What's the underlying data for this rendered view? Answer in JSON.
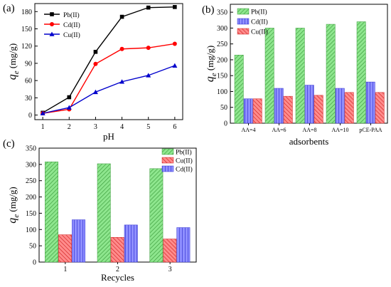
{
  "colors": {
    "pb_line": "#000000",
    "cd_line": "#ff0000",
    "cu_line": "#0000cc",
    "pb_bar": "#8ee68e",
    "pb_hatch": "#3a9a3a",
    "cd_bar": "#8f8fff",
    "cd_hatch": "#3030d0",
    "cu_bar": "#ff8c8c",
    "cu_hatch": "#d02020"
  },
  "chart_data": [
    {
      "id": "a",
      "panel_label": "(a)",
      "type": "line",
      "xlabel": "pH",
      "ylabel_main": "q",
      "ylabel_sub": "e",
      "ylabel_unit": " (mg/g)",
      "xlim": [
        0.7,
        6.3
      ],
      "ylim": [
        -8,
        194
      ],
      "xticks": [
        1,
        2,
        3,
        4,
        5,
        6
      ],
      "yticks": [
        0,
        30,
        60,
        90,
        120,
        150,
        180
      ],
      "grid": false,
      "legend_position": "top-left",
      "x": [
        1,
        2,
        3,
        4,
        5,
        6
      ],
      "series": [
        {
          "name": "Pb(II)",
          "marker": "square",
          "color_key": "pb_line",
          "values": [
            4,
            31,
            110,
            171,
            187,
            188
          ]
        },
        {
          "name": "Cd(II)",
          "marker": "circle",
          "color_key": "cd_line",
          "values": [
            3,
            10,
            89,
            115,
            117,
            124
          ]
        },
        {
          "name": "Cu(II)",
          "marker": "triangle",
          "color_key": "cu_line",
          "values": [
            3,
            13,
            40,
            58,
            69,
            86
          ]
        }
      ]
    },
    {
      "id": "b",
      "panel_label": "(b)",
      "type": "bar",
      "xlabel": "adsorbents",
      "ylabel_main": "q",
      "ylabel_sub": "e",
      "ylabel_unit": " (mg/g)",
      "ylim": [
        0,
        375
      ],
      "yticks": [
        0,
        50,
        100,
        150,
        200,
        250,
        300,
        350
      ],
      "grid": false,
      "legend_position": "top-left",
      "categories": [
        "AA=4",
        "AA=6",
        "AA=8",
        "AA=10",
        "pCE-PAA"
      ],
      "series": [
        {
          "name": "Pb(II)",
          "fill_key": "pb_bar",
          "hatch_key": "pb_hatch",
          "values": [
            215,
            300,
            300,
            312,
            320
          ]
        },
        {
          "name": "Cd(II)",
          "fill_key": "cd_bar",
          "hatch_key": "cd_hatch",
          "values": [
            77,
            110,
            120,
            110,
            130
          ]
        },
        {
          "name": "Cu(II)",
          "fill_key": "cu_bar",
          "hatch_key": "cu_hatch",
          "values": [
            77,
            85,
            88,
            97,
            97
          ]
        }
      ]
    },
    {
      "id": "c",
      "panel_label": "(c)",
      "type": "bar",
      "xlabel": "Recycles",
      "ylabel_main": "q",
      "ylabel_sub": "e",
      "ylabel_unit": " (mg/g)",
      "ylim": [
        0,
        350
      ],
      "yticks": [
        0,
        50,
        100,
        150,
        200,
        250,
        300,
        350
      ],
      "grid": false,
      "legend_position": "top-right",
      "categories": [
        "1",
        "2",
        "3"
      ],
      "series": [
        {
          "name": "Pb(II)",
          "fill_key": "pb_bar",
          "hatch_key": "pb_hatch",
          "values": [
            308,
            302,
            287
          ]
        },
        {
          "name": "Cu(II)",
          "fill_key": "cu_bar",
          "hatch_key": "cu_hatch",
          "values": [
            84,
            76,
            71
          ]
        },
        {
          "name": "Cd(II)",
          "fill_key": "cd_bar",
          "hatch_key": "cd_hatch",
          "values": [
            130,
            114,
            106
          ]
        }
      ]
    }
  ]
}
